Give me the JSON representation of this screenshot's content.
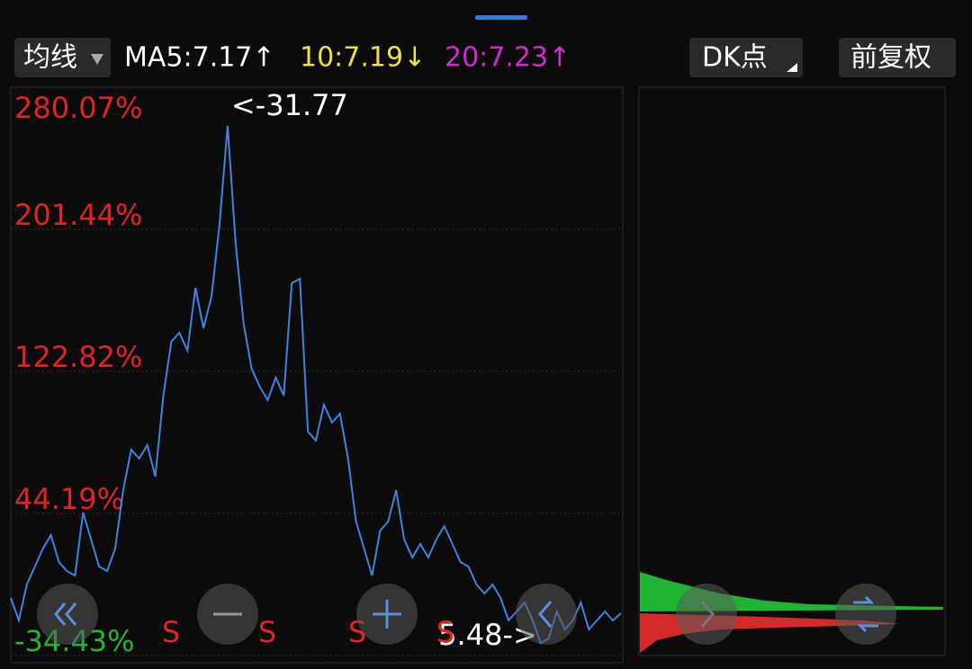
{
  "toolbar": {
    "ma_button": "均线",
    "ma5": "MA5:7.17↑",
    "ma10": "10:7.19↓",
    "ma20": "20:7.23↑",
    "dk_button": "DK点",
    "adjust_button": "前复权"
  },
  "chart_data": {
    "type": "line",
    "color": "#3f83dc",
    "positive_color": "#e02424",
    "negative_color": "#22b53a",
    "ylim": [
      -34.43,
      280.07
    ],
    "yticks": [
      {
        "value": 280.07,
        "label": "280.07%"
      },
      {
        "value": 201.44,
        "label": "201.44%"
      },
      {
        "value": 122.82,
        "label": "122.82%"
      },
      {
        "value": 44.19,
        "label": "44.19%"
      },
      {
        "value": -34.43,
        "label": "-34.43%"
      }
    ],
    "grid": true,
    "max_label": "<-31.77",
    "min_label": "5.48->",
    "signals": [
      "S",
      "S",
      "S",
      "S"
    ],
    "values": [
      -2.6,
      -15.0,
      4.9,
      14.8,
      24.8,
      32.2,
      17.3,
      12.3,
      9.8,
      44.7,
      29.8,
      14.8,
      12.3,
      24.8,
      57.1,
      79.5,
      74.6,
      82.0,
      64.6,
      109.4,
      139.3,
      144.2,
      134.3,
      169.1,
      146.7,
      164.1,
      204.0,
      258.7,
      194.0,
      149.2,
      124.3,
      114.4,
      106.9,
      119.4,
      109.4,
      171.6,
      174.1,
      89.5,
      84.5,
      104.4,
      94.5,
      99.4,
      74.6,
      39.7,
      24.8,
      9.8,
      34.7,
      39.7,
      57.1,
      29.8,
      19.8,
      27.3,
      19.8,
      29.8,
      37.2,
      27.3,
      17.3,
      14.8,
      4.9,
      -0.1,
      4.9,
      -2.6,
      -15.0,
      -10.1,
      -5.1,
      -15.0,
      -27.5,
      -25.0,
      -10.1,
      -20.0,
      -15.0,
      -5.1,
      -20.0,
      -15.0,
      -10.1,
      -15.0,
      -11.0
    ]
  }
}
